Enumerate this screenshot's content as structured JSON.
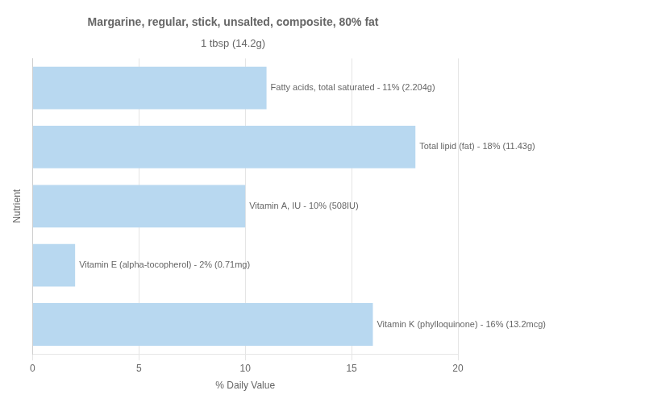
{
  "chart_data": {
    "type": "bar",
    "orientation": "horizontal",
    "title": "Margarine, regular, stick, unsalted, composite, 80% fat",
    "subtitle": "1 tbsp (14.2g)",
    "xlabel": "% Daily Value",
    "ylabel": "Nutrient",
    "categories": [
      null,
      null,
      null,
      null,
      null
    ],
    "values": [
      11,
      18,
      10,
      2,
      16
    ],
    "value_labels": [
      "Fatty acids, total saturated - 11% (2.204g)",
      "Total lipid (fat) - 18% (11.43g)",
      "Vitamin A, IU - 10% (508IU)",
      "Vitamin E (alpha-tocopherol) - 2% (0.71mg)",
      "Vitamin K (phylloquinone) - 16% (13.2mcg)"
    ],
    "data_labels": true,
    "color": "#b8d8f0",
    "xlim": [
      0,
      20
    ],
    "xticks": [
      0,
      5,
      10,
      15,
      20
    ],
    "grid": true,
    "tick_labels": "x"
  }
}
